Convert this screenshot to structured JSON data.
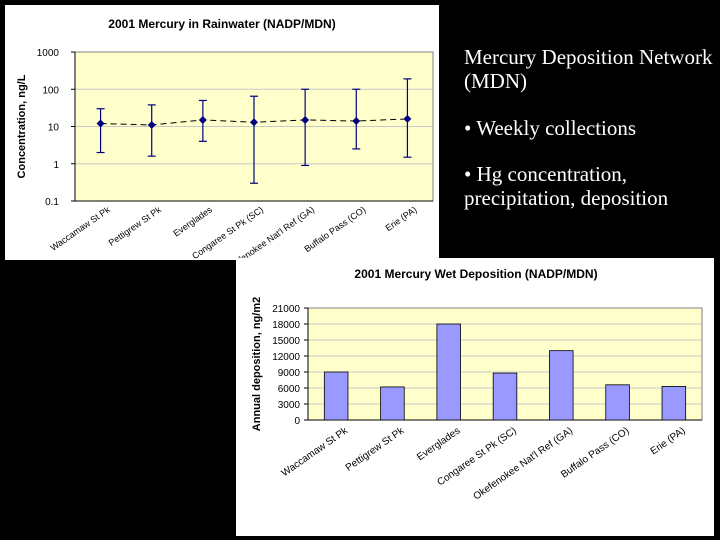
{
  "slide": {
    "title": "Mercury Deposition Network (MDN)",
    "bullets": [
      "• Weekly collections",
      "• Hg concentration, precipitation, deposition"
    ]
  },
  "chart_data": [
    {
      "type": "scatter",
      "title": "2001 Mercury in Rainwater (NADP/MDN)",
      "xlabel": "",
      "ylabel": "Concentration, ng/L",
      "yscale": "log",
      "ylim": [
        0.1,
        1000
      ],
      "yticks": [
        "0.1",
        "1",
        "10",
        "100",
        "1000"
      ],
      "categories": [
        "Waccamaw St Pk",
        "Pettigrew St Pk",
        "Everglades",
        "Congaree St Pk (SC)",
        "Okefenokee Nat'l Ref (GA)",
        "Buffalo Pass (CO)",
        "Erie (PA)"
      ],
      "values": [
        12,
        11,
        15,
        13,
        15,
        14,
        16
      ],
      "error_low": [
        2,
        1.6,
        4,
        0.3,
        0.9,
        2.5,
        1.5
      ],
      "error_high": [
        30,
        38,
        50,
        65,
        100,
        100,
        190
      ],
      "trend": "dashed line connecting means",
      "background": "#ffffcc",
      "color": "#000080"
    },
    {
      "type": "bar",
      "title": "2001 Mercury Wet Deposition (NADP/MDN)",
      "xlabel": "",
      "ylabel": "Annual deposition, ng/m2",
      "ylim": [
        0,
        21000
      ],
      "yticks": [
        "0",
        "3000",
        "6000",
        "9000",
        "12000",
        "15000",
        "18000",
        "21000"
      ],
      "categories": [
        "Waccamaw St Pk",
        "Pettigrew St Pk",
        "Everglades",
        "Congaree St Pk (SC)",
        "Okefenokee Nat'l Ref (GA)",
        "Buffalo Pass (CO)",
        "Erie (PA)"
      ],
      "values": [
        9000,
        6200,
        18000,
        8800,
        13000,
        6600,
        6300
      ],
      "background": "#ffffcc",
      "color": "#9999ff"
    }
  ]
}
